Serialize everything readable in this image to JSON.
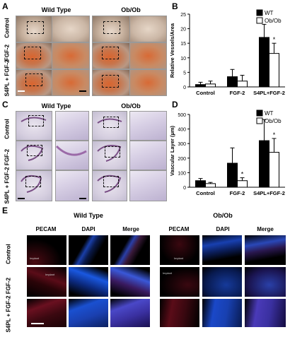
{
  "panels": {
    "A": {
      "label": "A",
      "col_headers": [
        "Wild Type",
        "Ob/Ob"
      ],
      "row_labels": [
        "Control",
        "FGF-2",
        "S4PL + FGF-2"
      ]
    },
    "C": {
      "label": "C",
      "col_headers": [
        "Wild Type",
        "Ob/Ob"
      ],
      "row_labels": [
        "Control",
        "FGF-2",
        "S4PL + FGF-2"
      ]
    },
    "E": {
      "label": "E",
      "group_headers": [
        "Wild Type",
        "Ob/Ob"
      ],
      "channel_headers": [
        "PECAM",
        "DAPI",
        "Merge",
        "PECAM",
        "DAPI",
        "Merge"
      ],
      "row_labels": [
        "Control",
        "FGF-2",
        "S4PL + FGF-2"
      ],
      "implant_label": "Implant"
    }
  },
  "chart_data": [
    {
      "panel": "B",
      "type": "bar",
      "ylabel": "Relative Vessels/Area",
      "categories": [
        "Control",
        "FGF-2",
        "S4PL+FGF-2"
      ],
      "ylim": [
        0,
        25
      ],
      "yticks": [
        "0",
        "5",
        "10",
        "15",
        "20",
        "25"
      ],
      "series": [
        {
          "name": "WT",
          "color": "#000000",
          "values": [
            0.8,
            3.5,
            17
          ],
          "errors": [
            0.8,
            2.5,
            4.5
          ]
        },
        {
          "name": "Ob/Ob",
          "color": "#ffffff",
          "values": [
            1.0,
            2.0,
            11.5
          ],
          "errors": [
            1.0,
            2.0,
            3.5
          ]
        }
      ],
      "annotations": [
        {
          "series": "Ob/Ob",
          "category": "S4PL+FGF-2",
          "text": "*"
        }
      ],
      "legend": "top-right"
    },
    {
      "panel": "D",
      "type": "bar",
      "ylabel": "Vascular Layer (µm)",
      "categories": [
        "Control",
        "FGF-2",
        "S4PL+FGF-2"
      ],
      "ylim": [
        0,
        500
      ],
      "yticks": [
        "0",
        "100",
        "200",
        "300",
        "400",
        "500"
      ],
      "series": [
        {
          "name": "WT",
          "color": "#000000",
          "values": [
            45,
            165,
            320
          ],
          "errors": [
            15,
            105,
            145
          ]
        },
        {
          "name": "Ob/Ob",
          "color": "#ffffff",
          "values": [
            25,
            45,
            240
          ],
          "errors": [
            8,
            20,
            95
          ]
        }
      ],
      "annotations": [
        {
          "series": "Ob/Ob",
          "category": "FGF-2",
          "text": "*"
        },
        {
          "series": "Ob/Ob",
          "category": "S4PL+FGF-2",
          "text": "*"
        }
      ],
      "legend": "top-right"
    }
  ]
}
